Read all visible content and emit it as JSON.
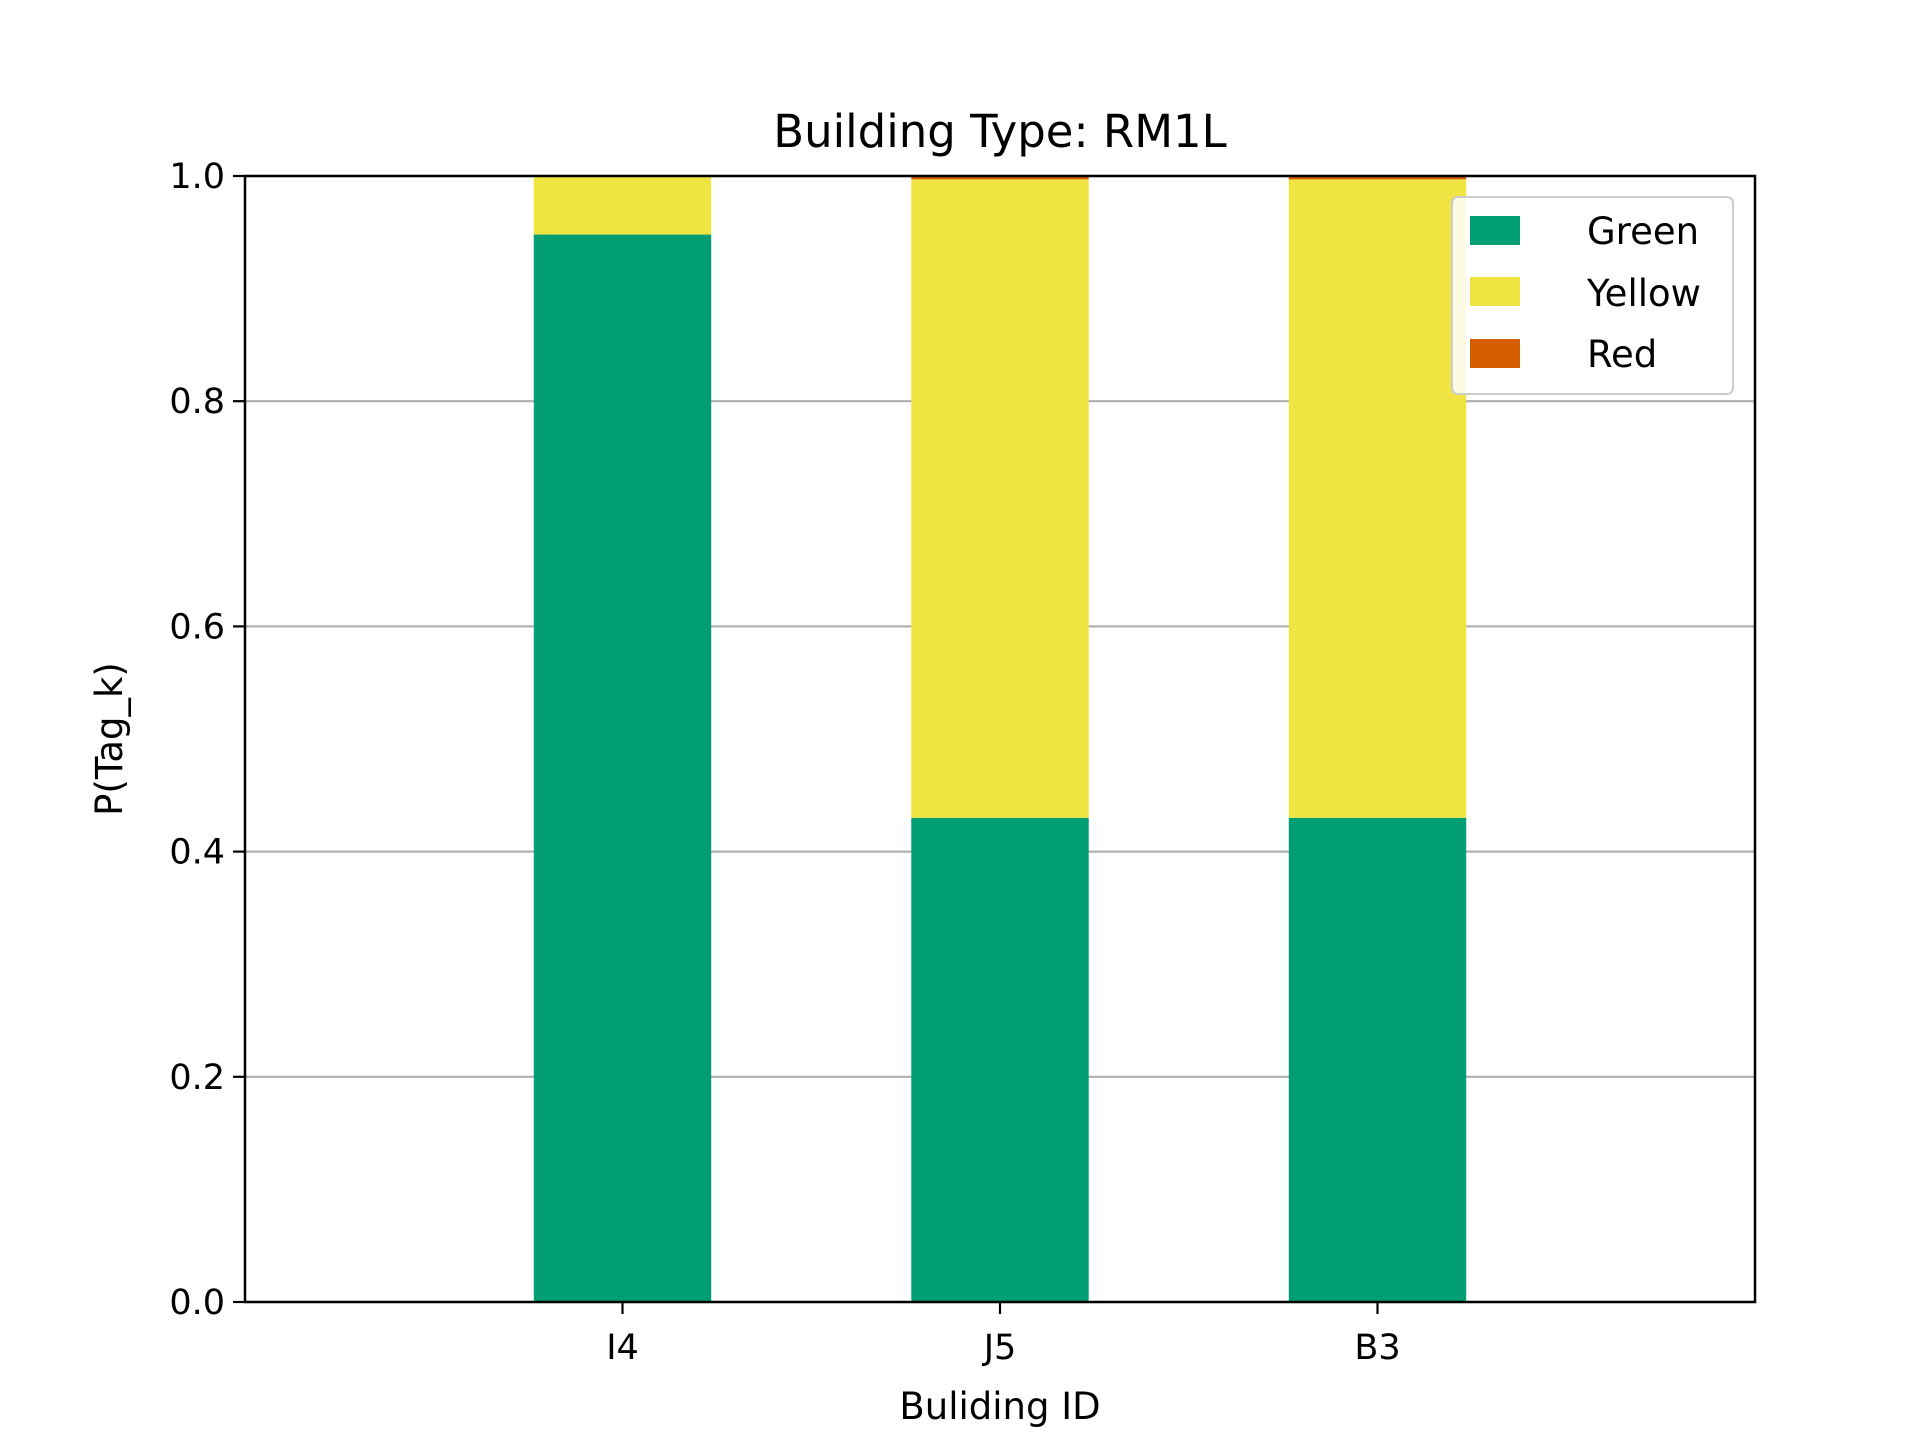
{
  "chart_data": {
    "type": "bar",
    "stacked": true,
    "title": "Building Type: RM1L",
    "xlabel": "Buliding ID",
    "ylabel": "P(Tag_k)",
    "categories": [
      "I4",
      "J5",
      "B3"
    ],
    "ylim": [
      0,
      1
    ],
    "yticks": [
      "0.0",
      "0.2",
      "0.4",
      "0.6",
      "0.8",
      "1.0"
    ],
    "grid": "horizontal",
    "legend_position": "top-right",
    "series": [
      {
        "name": "Green",
        "color": "#009e73",
        "values": [
          0.948,
          0.43,
          0.43
        ]
      },
      {
        "name": "Yellow",
        "color": "#f0e442",
        "values": [
          0.052,
          0.567,
          0.567
        ]
      },
      {
        "name": "Red",
        "color": "#d55e00",
        "values": [
          0.0,
          0.003,
          0.003
        ]
      }
    ]
  }
}
